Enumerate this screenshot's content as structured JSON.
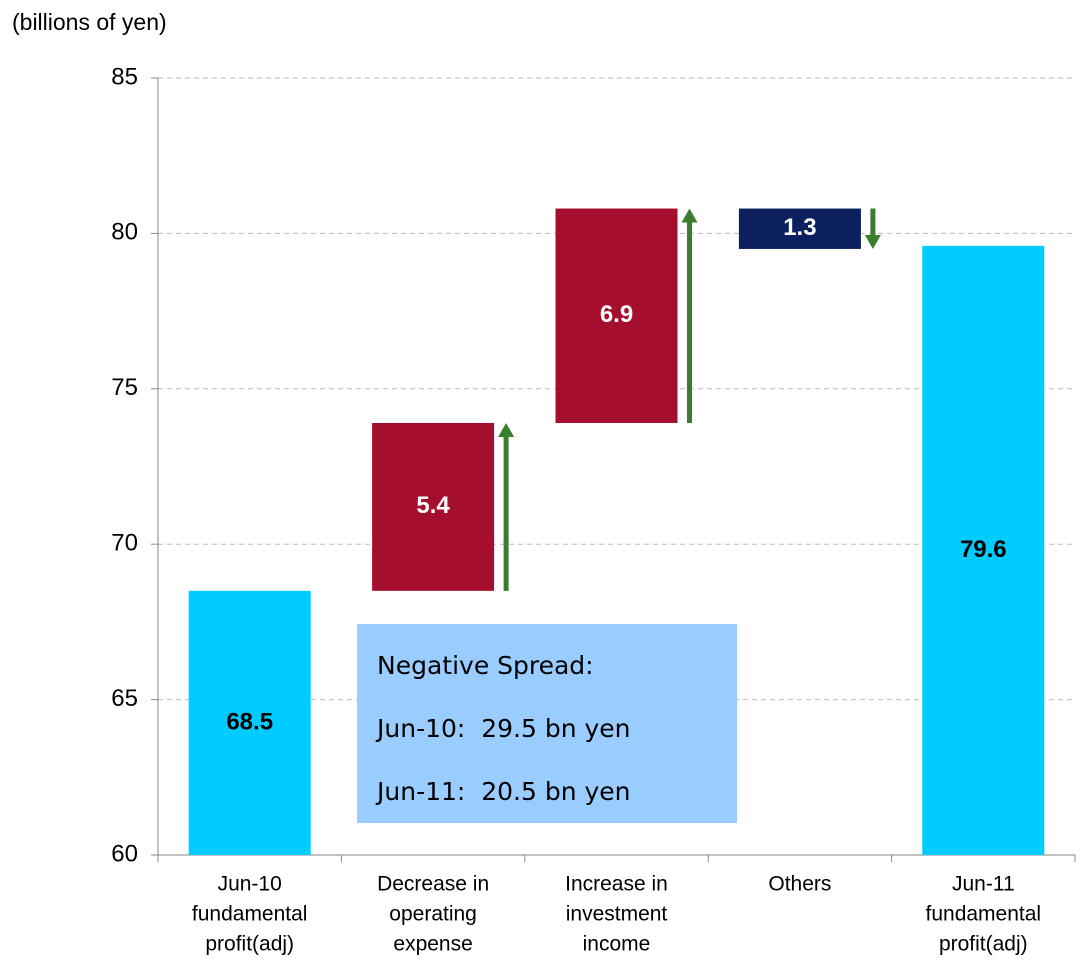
{
  "chart_data": {
    "type": "waterfall",
    "axis_label": "(billions of yen)",
    "categories": [
      [
        "Jun-10",
        "fundamental",
        "profit(adj)"
      ],
      [
        "Decrease in",
        "operating",
        "expense"
      ],
      [
        "Increase in",
        "investment",
        "income"
      ],
      [
        "Others"
      ],
      [
        "Jun-11",
        "fundamental",
        "profit(adj)"
      ]
    ],
    "measure": [
      "absolute",
      "relative",
      "relative",
      "relative",
      "total"
    ],
    "values": [
      68.5,
      5.4,
      6.9,
      -1.3,
      79.6
    ],
    "value_labels": [
      "68.5",
      "5.4",
      "6.9",
      "1.3",
      "79.6"
    ],
    "colors": {
      "total": "#00ccff",
      "increase": "#a50f2d",
      "decrease": "#0c1f5e",
      "arrow": "#3a7d2c"
    },
    "ylim": [
      60,
      85
    ],
    "yticks": [
      60,
      65,
      70,
      75,
      80,
      85
    ],
    "grid": true,
    "annotation": {
      "lines": [
        "Negative Spread:",
        "Jun-10:  29.5 bn yen",
        "Jun-11:  20.5 bn yen"
      ],
      "color": "#99ccff"
    }
  }
}
